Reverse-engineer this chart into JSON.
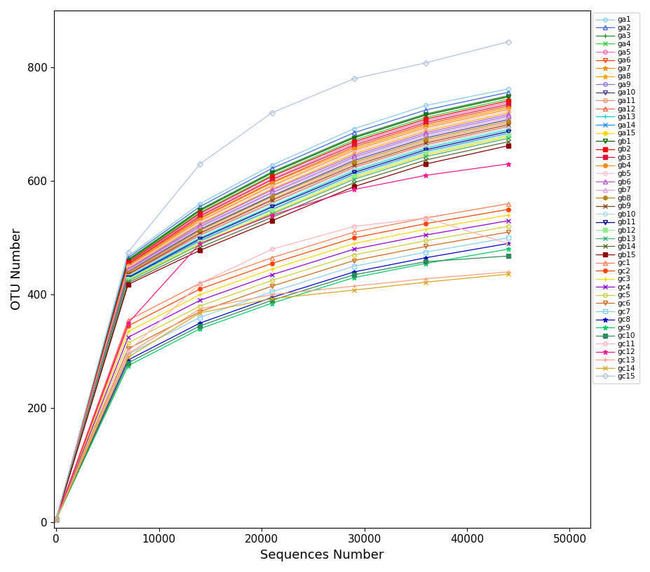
{
  "x_points": [
    0,
    7000,
    14000,
    21000,
    29000,
    36000,
    44000
  ],
  "xlabel": "Sequences Number",
  "ylabel": "OTU Number",
  "xlim": [
    -200,
    52000
  ],
  "ylim": [
    -10,
    900
  ],
  "yticks": [
    0,
    200,
    400,
    600,
    800
  ],
  "xticks": [
    0,
    10000,
    20000,
    30000,
    40000,
    50000
  ],
  "series": [
    {
      "label": "ga1",
      "color": "#87CEEB",
      "marker": "o",
      "ms": 4,
      "mfc": "none",
      "lw": 0.9,
      "values": [
        5,
        468,
        560,
        628,
        692,
        733,
        762
      ]
    },
    {
      "label": "ga2",
      "color": "#4169E1",
      "marker": "^",
      "ms": 4,
      "mfc": "none",
      "lw": 0.9,
      "values": [
        5,
        465,
        555,
        622,
        685,
        725,
        756
      ]
    },
    {
      "label": "ga3",
      "color": "#228B22",
      "marker": "+",
      "ms": 5,
      "mfc": "#228B22",
      "lw": 0.9,
      "values": [
        5,
        462,
        550,
        616,
        678,
        718,
        750
      ]
    },
    {
      "label": "ga4",
      "color": "#32CD32",
      "marker": "x",
      "ms": 4,
      "mfc": "#32CD32",
      "lw": 0.9,
      "values": [
        5,
        459,
        545,
        610,
        672,
        712,
        744
      ]
    },
    {
      "label": "ga5",
      "color": "#FF69B4",
      "marker": "o",
      "ms": 4,
      "mfc": "none",
      "lw": 0.9,
      "values": [
        5,
        456,
        540,
        604,
        666,
        706,
        738
      ]
    },
    {
      "label": "ga6",
      "color": "#FF4500",
      "marker": "v",
      "ms": 4,
      "mfc": "none",
      "lw": 0.9,
      "values": [
        5,
        453,
        535,
        598,
        660,
        700,
        732
      ]
    },
    {
      "label": "ga7",
      "color": "#FF8C00",
      "marker": "*",
      "ms": 5,
      "mfc": "#FF8C00",
      "lw": 0.9,
      "values": [
        5,
        450,
        530,
        592,
        654,
        694,
        726
      ]
    },
    {
      "label": "ga8",
      "color": "#FFA500",
      "marker": "*",
      "ms": 5,
      "mfc": "#FFA500",
      "lw": 0.9,
      "values": [
        5,
        447,
        525,
        586,
        648,
        688,
        720
      ]
    },
    {
      "label": "ga9",
      "color": "#9370DB",
      "marker": "o",
      "ms": 4,
      "mfc": "none",
      "lw": 0.9,
      "values": [
        5,
        444,
        520,
        580,
        642,
        682,
        714
      ]
    },
    {
      "label": "ga10",
      "color": "#483D8B",
      "marker": "v",
      "ms": 4,
      "mfc": "none",
      "lw": 0.9,
      "values": [
        5,
        441,
        515,
        574,
        636,
        676,
        708
      ]
    },
    {
      "label": "ga11",
      "color": "#FF8C69",
      "marker": "o",
      "ms": 4,
      "mfc": "none",
      "lw": 0.9,
      "values": [
        5,
        438,
        510,
        568,
        630,
        670,
        702
      ]
    },
    {
      "label": "ga12",
      "color": "#FF6347",
      "marker": "^",
      "ms": 4,
      "mfc": "none",
      "lw": 0.9,
      "values": [
        5,
        435,
        505,
        562,
        624,
        664,
        696
      ]
    },
    {
      "label": "ga13",
      "color": "#00CED1",
      "marker": "+",
      "ms": 5,
      "mfc": "#00CED1",
      "lw": 0.9,
      "values": [
        5,
        432,
        500,
        556,
        618,
        658,
        690
      ]
    },
    {
      "label": "ga14",
      "color": "#1E90FF",
      "marker": "x",
      "ms": 4,
      "mfc": "#1E90FF",
      "lw": 0.9,
      "values": [
        5,
        429,
        495,
        550,
        612,
        652,
        684
      ]
    },
    {
      "label": "ga15",
      "color": "#FFD700",
      "marker": "o",
      "ms": 4,
      "mfc": "#FFD700",
      "lw": 0.9,
      "values": [
        5,
        426,
        490,
        544,
        606,
        646,
        678
      ]
    },
    {
      "label": "gb1",
      "color": "#006400",
      "marker": "v",
      "ms": 4,
      "mfc": "none",
      "lw": 0.9,
      "values": [
        5,
        460,
        548,
        614,
        676,
        716,
        748
      ]
    },
    {
      "label": "gb2",
      "color": "#FF0000",
      "marker": "s",
      "ms": 4,
      "mfc": "#FF0000",
      "lw": 0.9,
      "values": [
        5,
        457,
        543,
        608,
        669,
        709,
        741
      ]
    },
    {
      "label": "gb3",
      "color": "#DC143C",
      "marker": "s",
      "ms": 4,
      "mfc": "#DC143C",
      "lw": 0.9,
      "values": [
        5,
        454,
        538,
        602,
        663,
        703,
        735
      ]
    },
    {
      "label": "gb4",
      "color": "#FF8C00",
      "marker": "o",
      "ms": 4,
      "mfc": "#FF8C00",
      "lw": 0.9,
      "values": [
        5,
        451,
        533,
        596,
        657,
        697,
        729
      ]
    },
    {
      "label": "gb5",
      "color": "#FFC0CB",
      "marker": "o",
      "ms": 4,
      "mfc": "none",
      "lw": 0.9,
      "values": [
        5,
        448,
        528,
        590,
        651,
        691,
        723
      ]
    },
    {
      "label": "gb6",
      "color": "#BA55D3",
      "marker": "^",
      "ms": 4,
      "mfc": "none",
      "lw": 0.9,
      "values": [
        5,
        445,
        523,
        584,
        645,
        685,
        717
      ]
    },
    {
      "label": "gb7",
      "color": "#DDA0DD",
      "marker": "^",
      "ms": 4,
      "mfc": "none",
      "lw": 0.9,
      "values": [
        5,
        442,
        518,
        578,
        639,
        679,
        711
      ]
    },
    {
      "label": "gb8",
      "color": "#B8860B",
      "marker": "o",
      "ms": 4,
      "mfc": "#B8860B",
      "lw": 0.9,
      "values": [
        5,
        439,
        513,
        572,
        633,
        673,
        705
      ]
    },
    {
      "label": "gb9",
      "color": "#8B4513",
      "marker": "x",
      "ms": 4,
      "mfc": "#8B4513",
      "lw": 0.9,
      "values": [
        5,
        436,
        508,
        566,
        627,
        667,
        699
      ]
    },
    {
      "label": "gb10",
      "color": "#ADD8E6",
      "marker": "o",
      "ms": 4,
      "mfc": "none",
      "lw": 0.9,
      "values": [
        5,
        433,
        503,
        560,
        621,
        661,
        693
      ]
    },
    {
      "label": "gb11",
      "color": "#00008B",
      "marker": "v",
      "ms": 4,
      "mfc": "none",
      "lw": 0.9,
      "values": [
        5,
        430,
        498,
        554,
        615,
        655,
        687
      ]
    },
    {
      "label": "gb12",
      "color": "#90EE90",
      "marker": "s",
      "ms": 4,
      "mfc": "#90EE90",
      "lw": 0.9,
      "values": [
        5,
        427,
        493,
        548,
        609,
        649,
        681
      ]
    },
    {
      "label": "gb13",
      "color": "#3CB371",
      "marker": "x",
      "ms": 4,
      "mfc": "#3CB371",
      "lw": 0.9,
      "values": [
        5,
        424,
        488,
        542,
        603,
        643,
        675
      ]
    },
    {
      "label": "gb14",
      "color": "#556B2F",
      "marker": "x",
      "ms": 4,
      "mfc": "#556B2F",
      "lw": 0.9,
      "values": [
        5,
        421,
        483,
        536,
        597,
        637,
        669
      ]
    },
    {
      "label": "gb15",
      "color": "#8B0000",
      "marker": "s",
      "ms": 4,
      "mfc": "#8B0000",
      "lw": 0.9,
      "values": [
        5,
        418,
        478,
        530,
        590,
        630,
        662
      ]
    },
    {
      "label": "gc1",
      "color": "#FF7F50",
      "marker": "^",
      "ms": 4,
      "mfc": "none",
      "lw": 0.9,
      "values": [
        5,
        355,
        420,
        465,
        510,
        535,
        560
      ]
    },
    {
      "label": "gc2",
      "color": "#FF4500",
      "marker": "o",
      "ms": 4,
      "mfc": "#FF4500",
      "lw": 0.9,
      "values": [
        5,
        345,
        410,
        455,
        500,
        525,
        550
      ]
    },
    {
      "label": "gc3",
      "color": "#FFD700",
      "marker": "+",
      "ms": 5,
      "mfc": "#FFD700",
      "lw": 0.9,
      "values": [
        5,
        335,
        400,
        445,
        490,
        515,
        540
      ]
    },
    {
      "label": "gc4",
      "color": "#9400D3",
      "marker": "x",
      "ms": 4,
      "mfc": "#9400D3",
      "lw": 0.9,
      "values": [
        5,
        325,
        390,
        435,
        480,
        505,
        530
      ]
    },
    {
      "label": "gc5",
      "color": "#CCCC44",
      "marker": "o",
      "ms": 4,
      "mfc": "none",
      "lw": 0.9,
      "values": [
        5,
        315,
        380,
        425,
        470,
        495,
        520
      ]
    },
    {
      "label": "gc6",
      "color": "#D2691E",
      "marker": "v",
      "ms": 4,
      "mfc": "none",
      "lw": 0.9,
      "values": [
        5,
        305,
        370,
        415,
        460,
        485,
        510
      ]
    },
    {
      "label": "gc7",
      "color": "#87CEFA",
      "marker": "s",
      "ms": 4,
      "mfc": "none",
      "lw": 0.9,
      "values": [
        5,
        295,
        360,
        405,
        450,
        475,
        500
      ]
    },
    {
      "label": "gc8",
      "color": "#0000CD",
      "marker": "*",
      "ms": 5,
      "mfc": "#0000CD",
      "lw": 0.9,
      "values": [
        5,
        285,
        350,
        395,
        440,
        465,
        490
      ]
    },
    {
      "label": "gc9",
      "color": "#00CC66",
      "marker": "*",
      "ms": 5,
      "mfc": "#00CC66",
      "lw": 0.9,
      "values": [
        5,
        275,
        340,
        385,
        430,
        455,
        480
      ]
    },
    {
      "label": "gc10",
      "color": "#2E8B57",
      "marker": "s",
      "ms": 4,
      "mfc": "#2E8B57",
      "lw": 0.9,
      "values": [
        5,
        280,
        345,
        390,
        435,
        458,
        468
      ]
    },
    {
      "label": "gc11",
      "color": "#FFB6C1",
      "marker": "o",
      "ms": 4,
      "mfc": "none",
      "lw": 0.9,
      "values": [
        5,
        300,
        420,
        480,
        520,
        535,
        490
      ]
    },
    {
      "label": "gc12",
      "color": "#FF1493",
      "marker": "*",
      "ms": 5,
      "mfc": "#FF1493",
      "lw": 0.9,
      "values": [
        5,
        350,
        490,
        540,
        585,
        610,
        630
      ]
    },
    {
      "label": "gc13",
      "color": "#FFA07A",
      "marker": "+",
      "ms": 5,
      "mfc": "#FFA07A",
      "lw": 0.9,
      "values": [
        5,
        296,
        375,
        400,
        415,
        428,
        440
      ]
    },
    {
      "label": "gc14",
      "color": "#DAA520",
      "marker": "x",
      "ms": 4,
      "mfc": "#DAA520",
      "lw": 0.9,
      "values": [
        5,
        290,
        368,
        393,
        408,
        422,
        436
      ]
    },
    {
      "label": "gc15",
      "color": "#B0C4DE",
      "marker": "D",
      "ms": 4,
      "mfc": "none",
      "lw": 0.9,
      "values": [
        5,
        475,
        630,
        720,
        780,
        808,
        845
      ]
    }
  ]
}
